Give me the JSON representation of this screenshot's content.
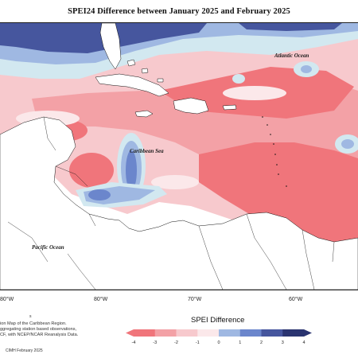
{
  "title": "SPEI24 Difference between January 2025 and February 2025",
  "places": {
    "atlantic": "Atlantic Ocean",
    "caribbean": "Caribbean Sea",
    "pacific": "Pacific Ocean"
  },
  "longitude_ticks": [
    "80°W",
    "80°W",
    "70°W",
    "60°W"
  ],
  "source_note": [
    "ion Map of the Caribbean Region.",
    "ggregating station based observations,",
    "CF, with NCEP/NCAR Reanalysis Data."
  ],
  "footnote_mark": "s",
  "credit": "CIMH February 2025",
  "legend": {
    "title": "SPEI Difference",
    "ticks": [
      "-4",
      "-3",
      "-2",
      "-1",
      "0",
      "1",
      "2",
      "3",
      "4"
    ],
    "colors": [
      "#f0757b",
      "#f3a1a6",
      "#f7c9cd",
      "#fbe8ea",
      "#d2e8f0",
      "#9fb8e2",
      "#6b86cc",
      "#46569e",
      "#2a3470"
    ]
  },
  "colors": {
    "strong_dry": "#f0757b",
    "moderate_dry": "#f3a1a6",
    "mild_dry": "#f7c9cd",
    "near_normal": "#fbe8ea",
    "mild_wet": "#d2e8f0",
    "moderate_wet": "#9fb8e2",
    "strong_wet": "#46569e"
  }
}
